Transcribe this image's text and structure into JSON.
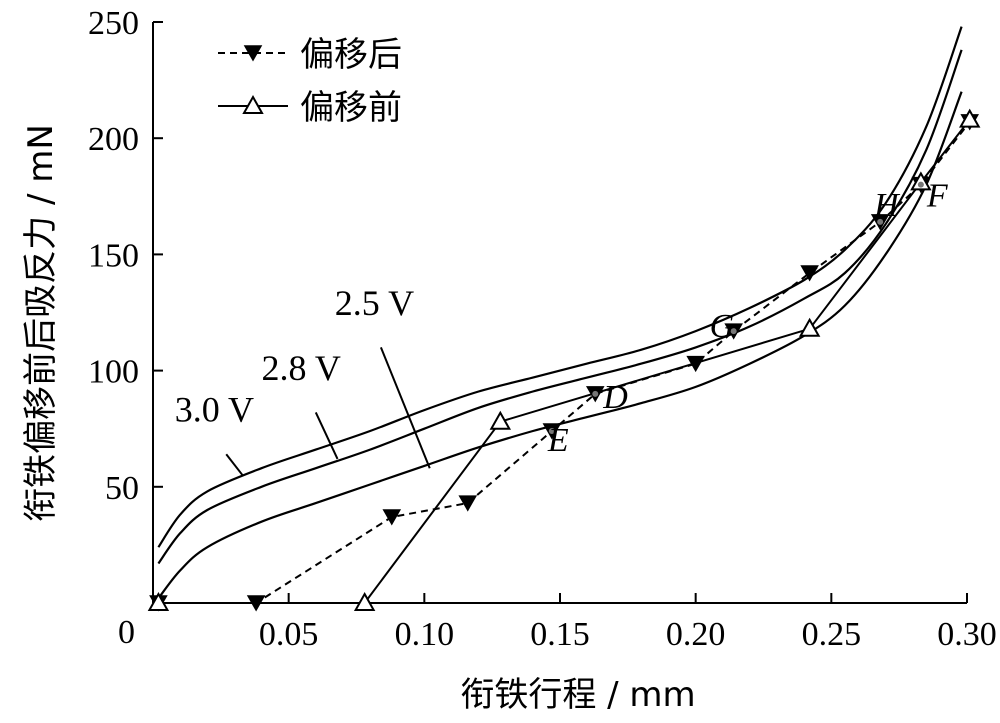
{
  "chart_data": {
    "type": "line",
    "xlabel": "衔铁行程 / mm",
    "ylabel": "衔铁偏移前后吸反力 / mN",
    "xlim": [
      0,
      0.3
    ],
    "ylim": [
      0,
      250
    ],
    "x_ticks": [
      0.05,
      0.1,
      0.15,
      0.2,
      0.25,
      0.3
    ],
    "x_tick_labels": [
      "0.05",
      "0.10",
      "0.15",
      "0.20",
      "0.25",
      "0.30"
    ],
    "y_ticks": [
      0,
      50,
      100,
      150,
      200,
      250
    ],
    "y_tick_labels": [
      "0",
      "50",
      "100",
      "150",
      "200",
      "250"
    ],
    "grid": false,
    "legend": {
      "position": "top-left",
      "entries": [
        {
          "label": "偏移后",
          "marker": "filled-down-triangle",
          "line": "dashed"
        },
        {
          "label": "偏移前",
          "marker": "open-up-triangle",
          "line": "solid"
        }
      ]
    },
    "series": [
      {
        "name": "偏移后",
        "marker": "filled-down-triangle",
        "dash": true,
        "points": [
          [
            0.002,
            0
          ],
          [
            0.038,
            0
          ],
          [
            0.088,
            37
          ],
          [
            0.116,
            43
          ],
          [
            0.147,
            74
          ],
          [
            0.163,
            90
          ],
          [
            0.2,
            103
          ],
          [
            0.214,
            117
          ],
          [
            0.242,
            142
          ],
          [
            0.268,
            164
          ],
          [
            0.283,
            180
          ],
          [
            0.301,
            207
          ]
        ]
      },
      {
        "name": "偏移前",
        "marker": "open-up-triangle",
        "dash": false,
        "points": [
          [
            0.002,
            0
          ],
          [
            0.078,
            0
          ],
          [
            0.128,
            78
          ],
          [
            0.242,
            118
          ],
          [
            0.283,
            181
          ],
          [
            0.301,
            208
          ]
        ]
      }
    ],
    "force_curves": [
      {
        "label": "3.0 V",
        "points": [
          [
            0.002,
            24
          ],
          [
            0.01,
            38
          ],
          [
            0.02,
            48
          ],
          [
            0.04,
            58
          ],
          [
            0.06,
            66
          ],
          [
            0.08,
            74
          ],
          [
            0.1,
            83
          ],
          [
            0.12,
            91
          ],
          [
            0.14,
            97
          ],
          [
            0.16,
            103
          ],
          [
            0.18,
            109
          ],
          [
            0.2,
            117
          ],
          [
            0.22,
            127
          ],
          [
            0.24,
            139
          ],
          [
            0.255,
            152
          ],
          [
            0.27,
            172
          ],
          [
            0.285,
            205
          ],
          [
            0.298,
            248
          ]
        ]
      },
      {
        "label": "2.8 V",
        "points": [
          [
            0.002,
            17
          ],
          [
            0.01,
            30
          ],
          [
            0.02,
            40
          ],
          [
            0.04,
            50
          ],
          [
            0.06,
            58
          ],
          [
            0.08,
            66
          ],
          [
            0.1,
            75
          ],
          [
            0.12,
            84
          ],
          [
            0.14,
            91
          ],
          [
            0.16,
            97
          ],
          [
            0.18,
            103
          ],
          [
            0.2,
            110
          ],
          [
            0.22,
            119
          ],
          [
            0.24,
            131
          ],
          [
            0.255,
            142
          ],
          [
            0.27,
            163
          ],
          [
            0.285,
            195
          ],
          [
            0.298,
            238
          ]
        ]
      },
      {
        "label": "2.5 V",
        "points": [
          [
            0.002,
            2
          ],
          [
            0.01,
            14
          ],
          [
            0.02,
            24
          ],
          [
            0.04,
            35
          ],
          [
            0.06,
            43
          ],
          [
            0.08,
            51
          ],
          [
            0.1,
            59
          ],
          [
            0.12,
            67
          ],
          [
            0.14,
            74
          ],
          [
            0.16,
            80
          ],
          [
            0.18,
            86
          ],
          [
            0.2,
            93
          ],
          [
            0.22,
            103
          ],
          [
            0.24,
            115
          ],
          [
            0.255,
            128
          ],
          [
            0.27,
            150
          ],
          [
            0.285,
            180
          ],
          [
            0.298,
            220
          ]
        ]
      }
    ],
    "curve_label_callouts": [
      {
        "label": "3.0 V",
        "text_at": [
          0.008,
          78
        ],
        "line_from": [
          0.027,
          64
        ],
        "line_to": [
          0.033,
          55
        ]
      },
      {
        "label": "2.8 V",
        "text_at": [
          0.04,
          96
        ],
        "line_from": [
          0.06,
          82
        ],
        "line_to": [
          0.068,
          62
        ]
      },
      {
        "label": "2.5 V",
        "text_at": [
          0.067,
          124
        ],
        "line_from": [
          0.084,
          110
        ],
        "line_to": [
          0.102,
          58
        ]
      }
    ],
    "point_labels": [
      {
        "label": "E",
        "x": 0.147,
        "y": 74
      },
      {
        "label": "D",
        "x": 0.163,
        "y": 90
      },
      {
        "label": "G",
        "x": 0.214,
        "y": 117
      },
      {
        "label": "H",
        "x": 0.268,
        "y": 164
      },
      {
        "label": "F",
        "x": 0.283,
        "y": 180
      }
    ]
  }
}
